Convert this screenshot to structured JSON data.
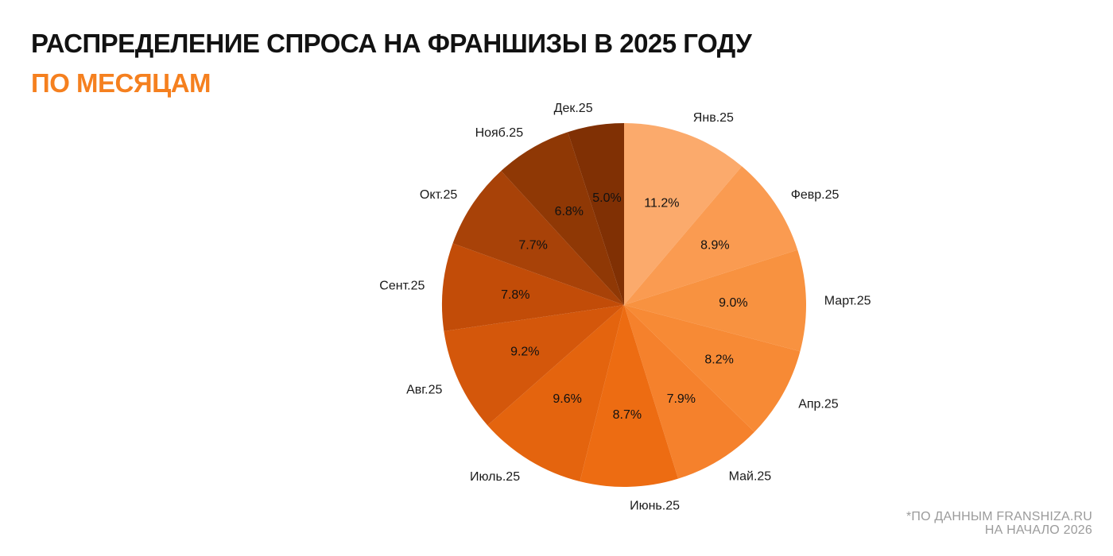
{
  "header": {
    "title": "РАСПРЕДЕЛЕНИЕ СПРОСА НА ФРАНШИЗЫ В 2025 ГОДУ",
    "subtitle": "ПО МЕСЯЦАМ",
    "title_color": "#121212",
    "subtitle_color": "#F5801F"
  },
  "footnote": {
    "line1": "*ПО ДАННЫМ FRANSHIZA.RU",
    "line2": "НА НАЧАЛО 2026",
    "color": "#9B9B9B"
  },
  "chart_data": {
    "type": "pie",
    "title": "Распределение спроса на франшизы в 2025 году по месяцам",
    "unit": "%",
    "total": 100.0,
    "start_angle": "12-oclock",
    "direction": "clockwise",
    "legend": "none",
    "value_label_format": "one-decimal-percent",
    "label_text_color": "#1a1a1a",
    "slices": [
      {
        "label": "Янв.25",
        "value": 11.2,
        "color": "#FBAA6C"
      },
      {
        "label": "Февр.25",
        "value": 8.9,
        "color": "#FA9B51"
      },
      {
        "label": "Март.25",
        "value": 9.0,
        "color": "#F89240"
      },
      {
        "label": "Апр.25",
        "value": 8.2,
        "color": "#F78A35"
      },
      {
        "label": "Май.25",
        "value": 7.9,
        "color": "#F5812C"
      },
      {
        "label": "Июнь.25",
        "value": 8.7,
        "color": "#ED6C12"
      },
      {
        "label": "Июль.25",
        "value": 9.6,
        "color": "#E4640E"
      },
      {
        "label": "Авг.25",
        "value": 9.2,
        "color": "#D4570B"
      },
      {
        "label": "Сент.25",
        "value": 7.8,
        "color": "#C24C08"
      },
      {
        "label": "Окт.25",
        "value": 7.7,
        "color": "#A84208"
      },
      {
        "label": "Нояб.25",
        "value": 6.8,
        "color": "#8F3805"
      },
      {
        "label": "Дек.25",
        "value": 5.0,
        "color": "#803004"
      }
    ]
  }
}
